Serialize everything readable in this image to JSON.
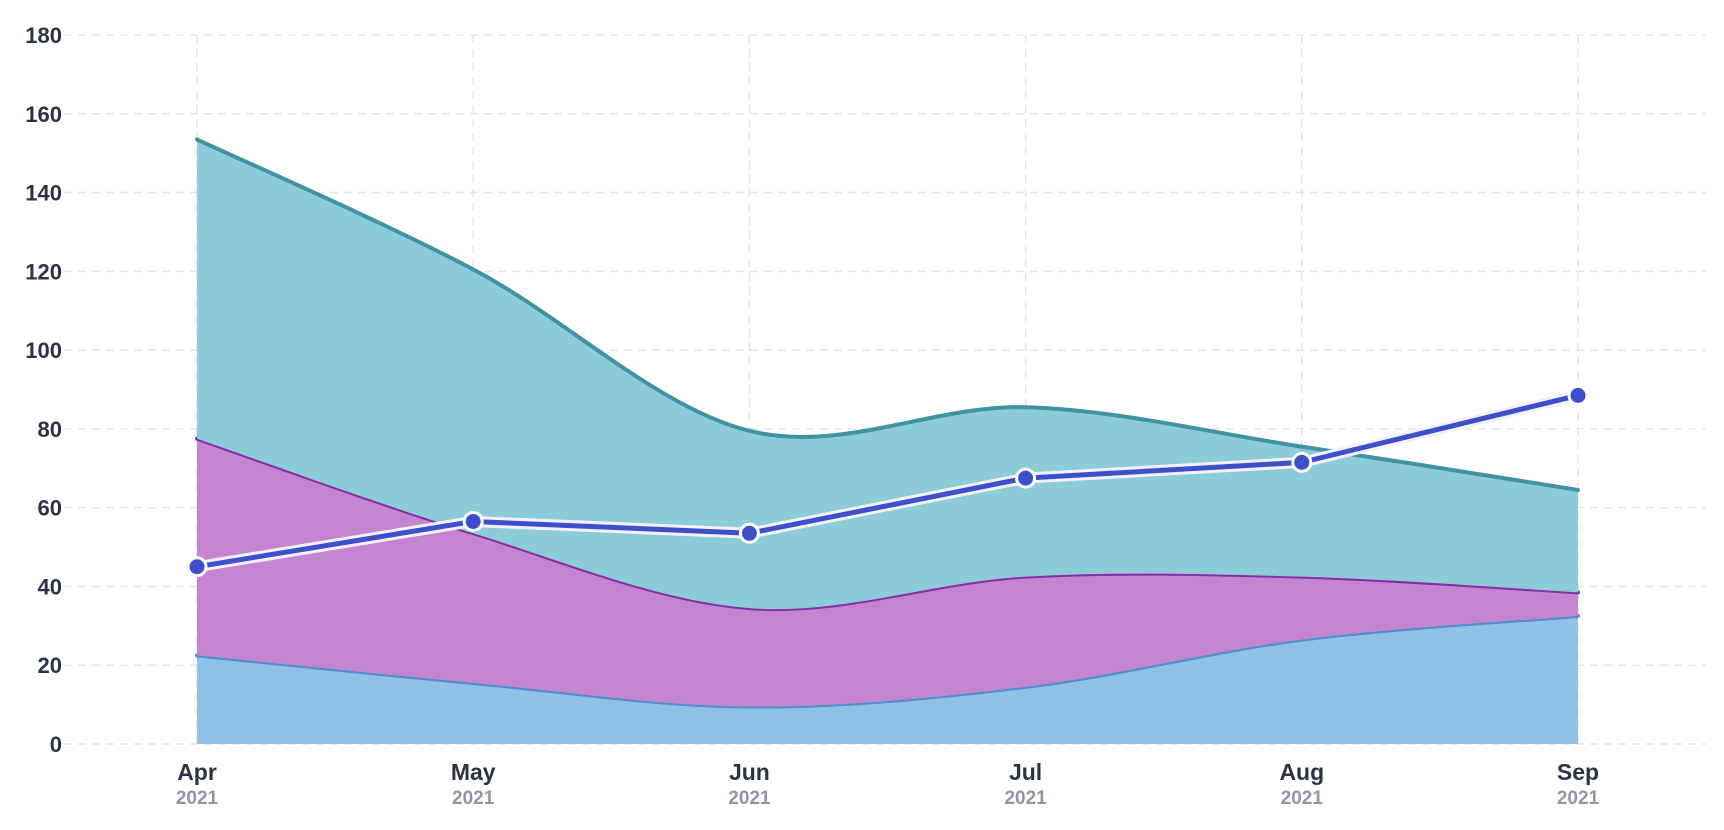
{
  "chart_data": {
    "type": "area",
    "stacked": true,
    "grid": true,
    "legend": "none",
    "categories": [
      "Apr",
      "May",
      "Jun",
      "Jul",
      "Aug",
      "Sep"
    ],
    "category_years": [
      "2021",
      "2021",
      "2021",
      "2021",
      "2021",
      "2021"
    ],
    "ylim": [
      0,
      180
    ],
    "yticks": [
      0,
      20,
      40,
      60,
      80,
      100,
      120,
      140,
      160,
      180
    ],
    "series": [
      {
        "type": "area",
        "values": [
          22.5,
          15.5,
          9.5,
          14.5,
          26.5,
          32.5
        ],
        "fill": "#90c0e6",
        "stroke": "#4a8fcf"
      },
      {
        "type": "area",
        "values": [
          55,
          38,
          25,
          28,
          16,
          6
        ],
        "fill": "#c385d0",
        "stroke": "#8a2aa6"
      },
      {
        "type": "area",
        "values": [
          76,
          67,
          45,
          43,
          33,
          26
        ],
        "fill": "#8cccd9",
        "stroke": "#3f93a3"
      },
      {
        "type": "line",
        "values": [
          45,
          56.5,
          53.5,
          67.5,
          71.5,
          88.5
        ],
        "stroke": "#3e4fcc"
      }
    ]
  }
}
